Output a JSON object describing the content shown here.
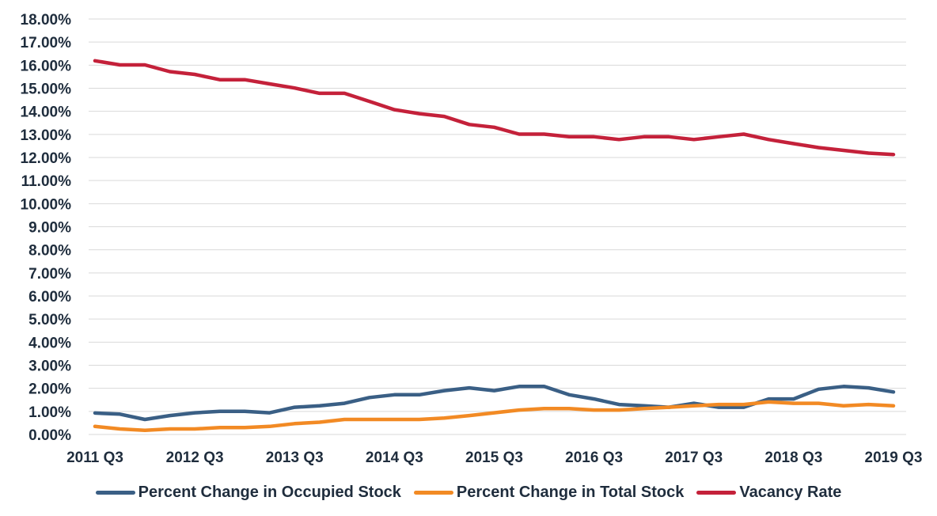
{
  "chart_data": {
    "type": "line",
    "y_tick_labels": [
      "0.00%",
      "1.00%",
      "2.00%",
      "3.00%",
      "4.00%",
      "5.00%",
      "6.00%",
      "7.00%",
      "8.00%",
      "9.00%",
      "10.00%",
      "11.00%",
      "12.00%",
      "13.00%",
      "14.00%",
      "15.00%",
      "16.00%",
      "17.00%",
      "18.00%"
    ],
    "ylim": [
      0,
      18
    ],
    "x": [
      "2011 Q3",
      "2011 Q4",
      "2012 Q1",
      "2012 Q2",
      "2012 Q3",
      "2012 Q4",
      "2013 Q1",
      "2013 Q2",
      "2013 Q3",
      "2013 Q4",
      "2014 Q1",
      "2014 Q2",
      "2014 Q3",
      "2014 Q4",
      "2015 Q1",
      "2015 Q2",
      "2015 Q3",
      "2015 Q4",
      "2016 Q1",
      "2016 Q2",
      "2016 Q3",
      "2016 Q4",
      "2017 Q1",
      "2017 Q2",
      "2017 Q3",
      "2017 Q4",
      "2018 Q1",
      "2018 Q2",
      "2018 Q3",
      "2018 Q4",
      "2019 Q1",
      "2019 Q2",
      "2019 Q3"
    ],
    "x_tick_labels": [
      "2011 Q3",
      "2012 Q3",
      "2013 Q3",
      "2014 Q3",
      "2015 Q3",
      "2016 Q3",
      "2017 Q3",
      "2018 Q3",
      "2019 Q3"
    ],
    "grid": true,
    "legend_position": "bottom",
    "series": [
      {
        "name": "Percent Change in Occupied Stock",
        "color": "#3a5f85",
        "values": [
          0.93,
          0.88,
          0.65,
          0.82,
          0.94,
          1.0,
          1.0,
          0.94,
          1.18,
          1.24,
          1.35,
          1.6,
          1.72,
          1.72,
          1.9,
          2.02,
          1.9,
          2.08,
          2.08,
          1.72,
          1.54,
          1.3,
          1.24,
          1.18,
          1.35,
          1.18,
          1.18,
          1.54,
          1.54,
          1.96,
          2.08,
          2.02,
          1.84
        ]
      },
      {
        "name": "Percent Change in Total Stock",
        "color": "#f28a24",
        "values": [
          0.35,
          0.24,
          0.18,
          0.24,
          0.24,
          0.3,
          0.3,
          0.35,
          0.47,
          0.53,
          0.65,
          0.65,
          0.65,
          0.65,
          0.71,
          0.82,
          0.94,
          1.06,
          1.12,
          1.12,
          1.06,
          1.06,
          1.12,
          1.18,
          1.24,
          1.3,
          1.3,
          1.41,
          1.35,
          1.35,
          1.24,
          1.3,
          1.24
        ]
      },
      {
        "name": "Vacancy Rate",
        "color": "#c4213a",
        "values": [
          16.19,
          16.01,
          16.01,
          15.72,
          15.6,
          15.37,
          15.37,
          15.19,
          15.01,
          14.78,
          14.78,
          14.43,
          14.07,
          13.9,
          13.78,
          13.43,
          13.31,
          13.01,
          13.01,
          12.9,
          12.9,
          12.78,
          12.9,
          12.9,
          12.78,
          12.9,
          13.01,
          12.78,
          12.6,
          12.43,
          12.31,
          12.19,
          12.13
        ]
      }
    ]
  }
}
